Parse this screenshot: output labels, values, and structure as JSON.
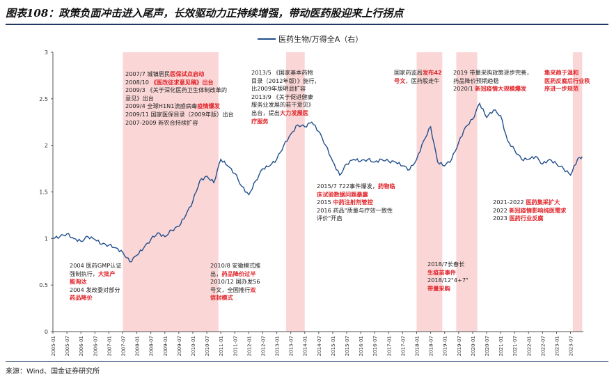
{
  "title": "图表108：政策负面冲击进入尾声，长效驱动力正持续增强，带动医药股迎来上行拐点",
  "source": "来源：Wind、国金证券研究所",
  "colors": {
    "line": "#1f4e8c",
    "shade": "#fbd6d6",
    "accent_red": "#e0252b",
    "rule": "#1f3864"
  },
  "chart_data": {
    "type": "line",
    "title": "",
    "series": [
      {
        "name": "医药生物/万得全A（右）",
        "points": [
          [
            "2005-01",
            1.0
          ],
          [
            "2005-04",
            1.02
          ],
          [
            "2005-07",
            1.05
          ],
          [
            "2005-10",
            1.0
          ],
          [
            "2006-01",
            0.97
          ],
          [
            "2006-04",
            1.02
          ],
          [
            "2006-07",
            0.99
          ],
          [
            "2006-10",
            0.94
          ],
          [
            "2007-01",
            0.93
          ],
          [
            "2007-04",
            0.9
          ],
          [
            "2007-07",
            0.85
          ],
          [
            "2007-10",
            0.75
          ],
          [
            "2008-01",
            0.82
          ],
          [
            "2008-04",
            0.9
          ],
          [
            "2008-07",
            0.99
          ],
          [
            "2008-10",
            1.06
          ],
          [
            "2009-01",
            1.02
          ],
          [
            "2009-04",
            1.09
          ],
          [
            "2009-07",
            1.13
          ],
          [
            "2009-10",
            1.25
          ],
          [
            "2010-01",
            1.4
          ],
          [
            "2010-04",
            1.62
          ],
          [
            "2010-07",
            1.67
          ],
          [
            "2010-10",
            1.6
          ],
          [
            "2011-01",
            1.85
          ],
          [
            "2011-04",
            1.78
          ],
          [
            "2011-07",
            1.7
          ],
          [
            "2011-10",
            1.56
          ],
          [
            "2012-01",
            1.47
          ],
          [
            "2012-04",
            1.62
          ],
          [
            "2012-07",
            1.75
          ],
          [
            "2012-10",
            1.78
          ],
          [
            "2013-01",
            1.85
          ],
          [
            "2013-04",
            2.0
          ],
          [
            "2013-07",
            2.12
          ],
          [
            "2013-10",
            2.22
          ],
          [
            "2014-01",
            2.2
          ],
          [
            "2014-04",
            2.25
          ],
          [
            "2014-07",
            2.15
          ],
          [
            "2014-10",
            2.0
          ],
          [
            "2015-01",
            1.83
          ],
          [
            "2015-04",
            1.68
          ],
          [
            "2015-07",
            1.8
          ],
          [
            "2015-10",
            1.85
          ],
          [
            "2016-01",
            1.83
          ],
          [
            "2016-04",
            1.85
          ],
          [
            "2016-07",
            1.82
          ],
          [
            "2016-10",
            1.85
          ],
          [
            "2017-01",
            1.83
          ],
          [
            "2017-04",
            1.82
          ],
          [
            "2017-07",
            1.78
          ],
          [
            "2017-10",
            1.74
          ],
          [
            "2018-01",
            1.85
          ],
          [
            "2018-04",
            2.05
          ],
          [
            "2018-07",
            2.2
          ],
          [
            "2018-10",
            1.82
          ],
          [
            "2019-01",
            1.78
          ],
          [
            "2019-04",
            1.85
          ],
          [
            "2019-07",
            2.03
          ],
          [
            "2019-10",
            2.2
          ],
          [
            "2020-01",
            2.28
          ],
          [
            "2020-04",
            2.45
          ],
          [
            "2020-07",
            2.3
          ],
          [
            "2020-10",
            2.38
          ],
          [
            "2021-01",
            2.32
          ],
          [
            "2021-04",
            2.05
          ],
          [
            "2021-07",
            1.95
          ],
          [
            "2021-10",
            1.85
          ],
          [
            "2022-01",
            1.85
          ],
          [
            "2022-04",
            1.88
          ],
          [
            "2022-07",
            1.8
          ],
          [
            "2022-10",
            1.85
          ],
          [
            "2023-01",
            1.8
          ],
          [
            "2023-04",
            1.75
          ],
          [
            "2023-07",
            1.68
          ],
          [
            "2023-10",
            1.85
          ],
          [
            "2023-12",
            1.88
          ]
        ]
      }
    ],
    "ylim": [
      0,
      3
    ],
    "y_ticks": [
      "0",
      "0.5",
      "1",
      "1.5",
      "2",
      "2.5",
      "3"
    ],
    "x_ticks": [
      "2005-01",
      "2005-07",
      "2006-01",
      "2006-07",
      "2007-01",
      "2007-07",
      "2008-01",
      "2008-07",
      "2009-01",
      "2009-07",
      "2010-01",
      "2010-07",
      "2011-01",
      "2011-07",
      "2012-01",
      "2012-07",
      "2013-01",
      "2013-07",
      "2014-01",
      "2014-07",
      "2015-01",
      "2015-07",
      "2016-01",
      "2016-07",
      "2017-01",
      "2017-07",
      "2018-01",
      "2018-07",
      "2019-01",
      "2019-07",
      "2020-01",
      "2020-07",
      "2021-01",
      "2021-07",
      "2022-01",
      "2022-07",
      "2023-01",
      "2023-07"
    ],
    "shaded_periods": [
      [
        "2007-07",
        "2010-12"
      ],
      [
        "2013-05",
        "2014-01"
      ],
      [
        "2018-01",
        "2018-12"
      ],
      [
        "2019-06",
        "2020-03"
      ],
      [
        "2023-08",
        "2023-12"
      ]
    ],
    "grid": false,
    "legend": "top-center"
  },
  "annotations": [
    {
      "name": "ann-2007-2009",
      "lines": [
        [
          [
            "2007/7 城镇居民",
            false
          ],
          [
            "医保试点启动",
            true
          ]
        ],
        [
          [
            "2008/10 ",
            false
          ],
          [
            "《医改征求意见稿》出台",
            true
          ]
        ],
        [
          [
            "2009/3 《关于深化医药卫生体制改革的",
            false
          ]
        ],
        [
          [
            "意见》出台",
            false
          ]
        ],
        [
          [
            "2009/4 全球H1N1流感病毒",
            false
          ],
          [
            "疫情爆发",
            true
          ]
        ],
        [
          [
            "2009/11 国家医保目录（2009年版）出台",
            false
          ]
        ],
        [
          [
            "2007-2009 新农合持续扩容",
            false
          ]
        ]
      ]
    },
    {
      "name": "ann-2013",
      "lines": [
        [
          [
            "2013/5 《国家基本药物",
            false
          ]
        ],
        [
          [
            "目录（2012年版）》施行，",
            false
          ]
        ],
        [
          [
            "比2009年版明显扩容",
            false
          ]
        ],
        [
          [
            "2013/9 《关于促进健康",
            false
          ]
        ],
        [
          [
            "服务业发展的若干意见》",
            false
          ]
        ],
        [
          [
            "出台，提出",
            false
          ],
          [
            "大力发展医",
            true
          ]
        ],
        [
          [
            "疗服务",
            true
          ]
        ]
      ]
    },
    {
      "name": "ann-2018",
      "lines": [
        [
          [
            "国家药监局",
            false
          ],
          [
            "发布42",
            true
          ]
        ],
        [
          [
            "号文",
            true
          ],
          [
            "，医药股走牛",
            false
          ]
        ]
      ]
    },
    {
      "name": "ann-2019",
      "lines": [
        [
          [
            "2019 带量采购政策逐步完善，",
            false
          ]
        ],
        [
          [
            "药品降价预期趋稳",
            false
          ]
        ],
        [
          [
            "2020/1 ",
            false
          ],
          [
            "新冠疫情大规模爆发",
            true
          ]
        ]
      ]
    },
    {
      "name": "ann-2023-top",
      "lines": [
        [
          [
            "集采趋于温和",
            true
          ]
        ],
        [
          [
            "医药反腐后行业秩",
            true
          ]
        ],
        [
          [
            "序进一步规范",
            true
          ]
        ]
      ]
    },
    {
      "name": "ann-2004",
      "lines": [
        [
          [
            "2004 医药GMP认证",
            false
          ]
        ],
        [
          [
            "强制执行，",
            false
          ],
          [
            "大批产",
            true
          ]
        ],
        [
          [
            "能淘汰",
            true
          ]
        ],
        [
          [
            "2004 发改委对部分",
            false
          ]
        ],
        [
          [
            "药品降价",
            true
          ]
        ]
      ]
    },
    {
      "name": "ann-2010",
      "lines": [
        [
          [
            "2010/8 安徽模式推",
            false
          ]
        ],
        [
          [
            "出，",
            false
          ],
          [
            "药品降价过半",
            true
          ]
        ],
        [
          [
            "2010/12 国办发56",
            false
          ]
        ],
        [
          [
            "号文，全国推行",
            false
          ],
          [
            "双",
            true
          ]
        ],
        [
          [
            "信封模式",
            true
          ]
        ]
      ]
    },
    {
      "name": "ann-2015",
      "lines": [
        [
          [
            "2015/7 722事件爆发，",
            false
          ],
          [
            "药物临",
            true
          ]
        ],
        [
          [
            "床试验数据问题暴露",
            true
          ]
        ],
        [
          [
            "2015 ",
            false
          ],
          [
            "中药注射剂管控",
            true
          ]
        ],
        [
          [
            "2016 药品\"质量与疗效一致性",
            false
          ]
        ],
        [
          [
            "评价\"开启",
            false
          ]
        ]
      ]
    },
    {
      "name": "ann-2018-bottom",
      "lines": [
        [
          [
            "2018/7长春长",
            false
          ]
        ],
        [
          [
            "生疫苗事件",
            true
          ]
        ],
        [
          [
            "2018/12\"4+7\"",
            false
          ]
        ],
        [
          [
            "带量采购",
            true
          ]
        ]
      ]
    },
    {
      "name": "ann-2021",
      "lines": [
        [
          [
            "2021-2022 ",
            false
          ],
          [
            "医药集采扩大",
            true
          ]
        ],
        [
          [
            "2022 ",
            false
          ],
          [
            "新冠疫情影响纯医需求",
            true
          ]
        ],
        [
          [
            "2023 ",
            false
          ],
          [
            "医药行业反腐",
            true
          ]
        ]
      ]
    }
  ]
}
